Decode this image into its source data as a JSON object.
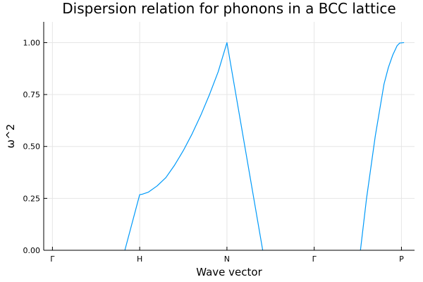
{
  "chart_data": {
    "type": "line",
    "title": "Dispersion relation for phonons in a BCC lattice",
    "xlabel": "Wave vector",
    "ylabel": "ω^2",
    "xlim": [
      -0.1,
      4.15
    ],
    "ylim": [
      0,
      1.1
    ],
    "grid": true,
    "legend": "none",
    "x_ticks": [
      {
        "value": 0,
        "label": "Γ"
      },
      {
        "value": 1,
        "label": "H"
      },
      {
        "value": 2,
        "label": "N"
      },
      {
        "value": 3,
        "label": "Γ"
      },
      {
        "value": 4,
        "label": "P"
      }
    ],
    "y_ticks": [
      {
        "value": 0,
        "label": "0.00"
      },
      {
        "value": 0.25,
        "label": "0.25"
      },
      {
        "value": 0.5,
        "label": "0.50"
      },
      {
        "value": 0.75,
        "label": "0.75"
      },
      {
        "value": 1.0,
        "label": "1.00"
      }
    ],
    "series": [
      {
        "color": "#009af9",
        "points": [
          [
            0.83,
            0.0
          ],
          [
            1.0,
            0.268
          ],
          [
            1.03,
            0.27
          ],
          [
            1.1,
            0.28
          ],
          [
            1.2,
            0.31
          ],
          [
            1.3,
            0.35
          ],
          [
            1.4,
            0.41
          ],
          [
            1.5,
            0.48
          ],
          [
            1.6,
            0.56
          ],
          [
            1.7,
            0.65
          ],
          [
            1.8,
            0.75
          ],
          [
            1.9,
            0.86
          ],
          [
            2.0,
            1.0
          ],
          [
            2.41,
            0.0
          ]
        ]
      },
      {
        "color": "#009af9",
        "points": [
          [
            3.53,
            0.0
          ],
          [
            3.6,
            0.25
          ],
          [
            3.7,
            0.55
          ],
          [
            3.8,
            0.8
          ],
          [
            3.85,
            0.88
          ],
          [
            3.9,
            0.94
          ],
          [
            3.95,
            0.985
          ],
          [
            3.98,
            0.998
          ],
          [
            4.03,
            1.0
          ]
        ]
      }
    ]
  }
}
